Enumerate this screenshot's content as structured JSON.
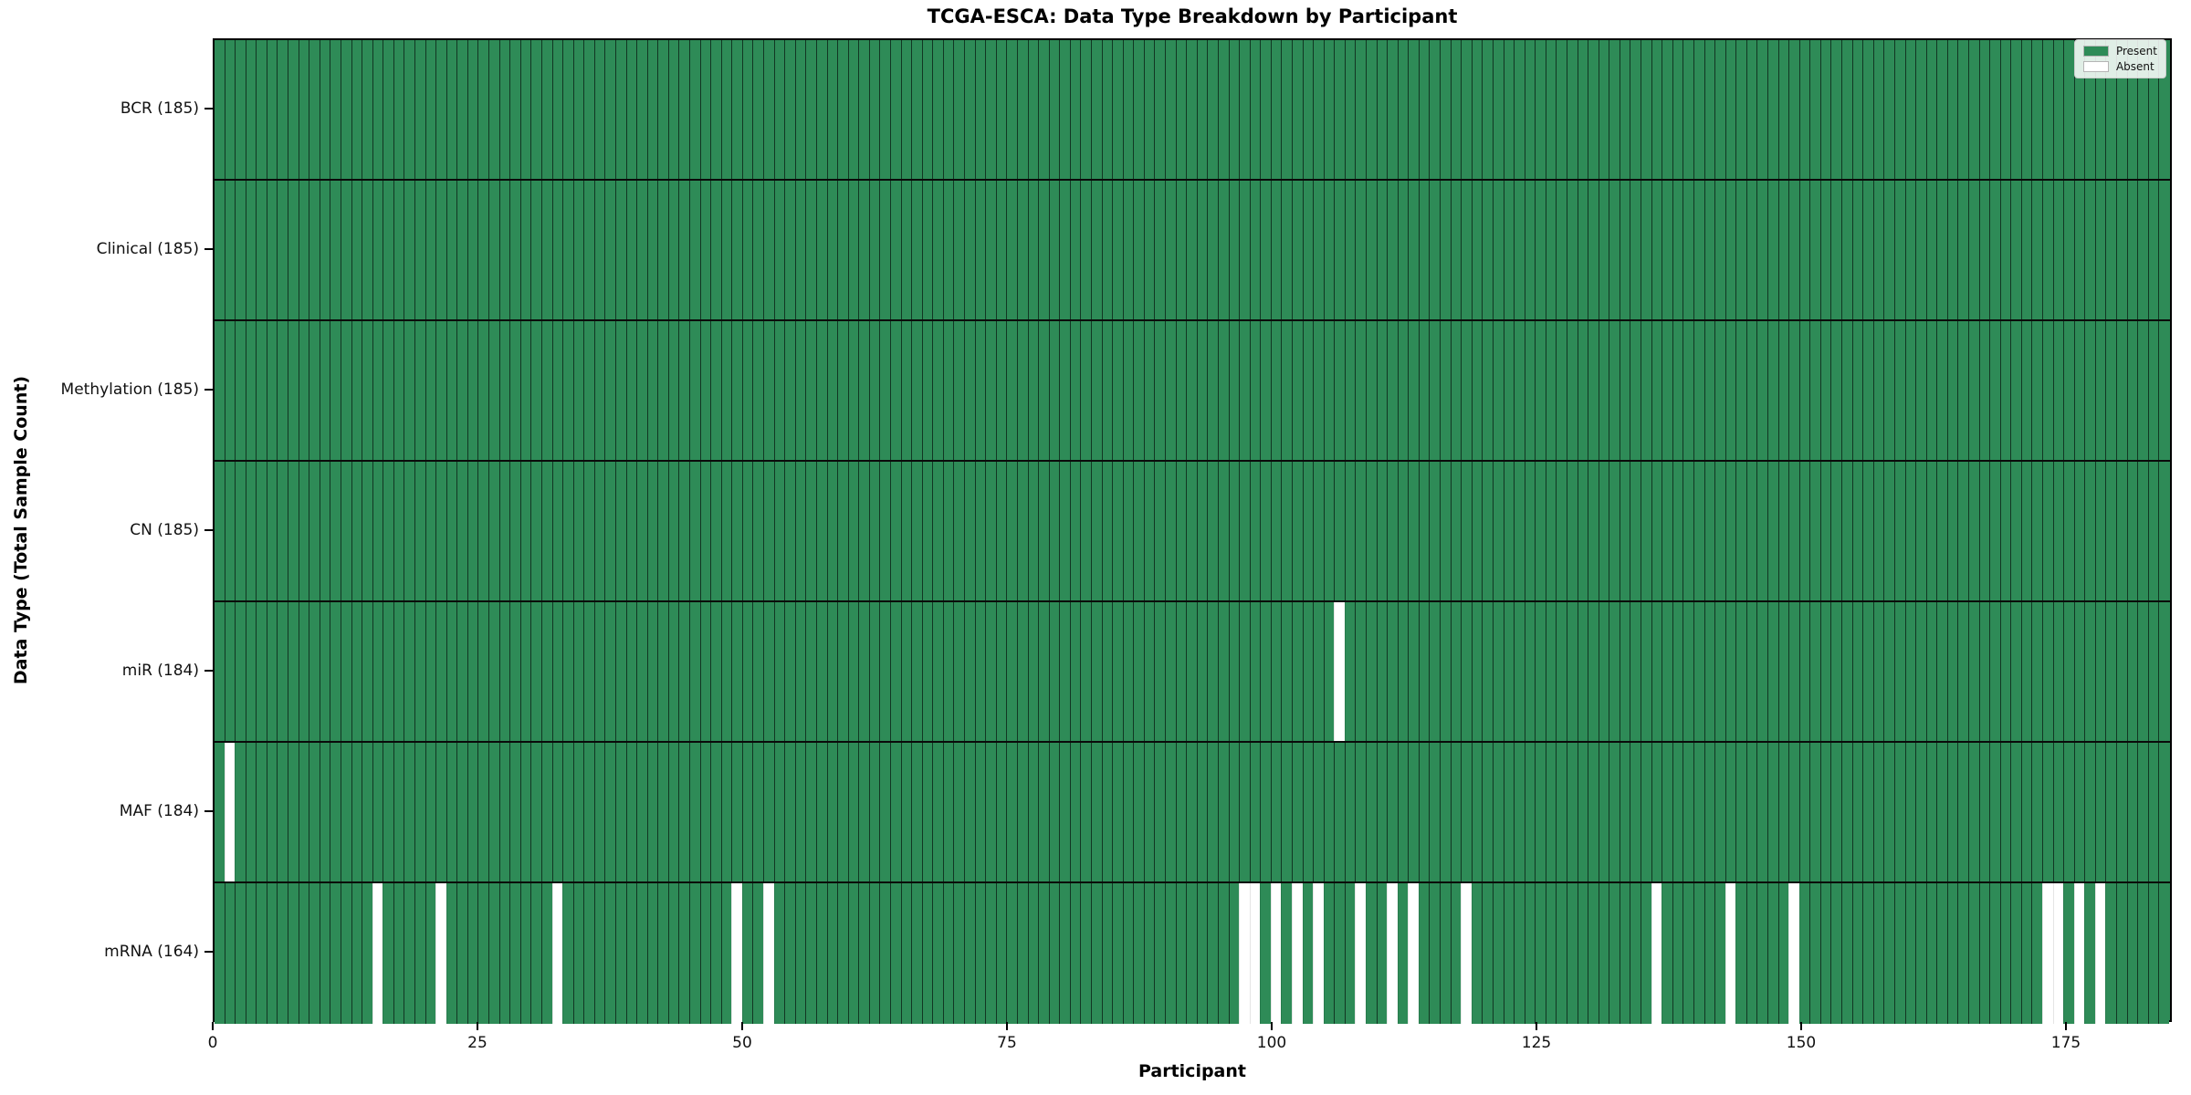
{
  "figure": {
    "title": "TCGA-ESCA: Data Type Breakdown by Participant",
    "xlabel": "Participant",
    "ylabel": "Data Type (Total Sample Count)"
  },
  "legend": {
    "items": [
      {
        "label": "Present",
        "color": "#2e8b57"
      },
      {
        "label": "Absent",
        "color": "#ffffff"
      }
    ]
  },
  "chart_data": {
    "type": "heatmap",
    "title": "TCGA-ESCA: Data Type Breakdown by Participant",
    "xlabel": "Participant",
    "ylabel": "Data Type (Total Sample Count)",
    "x_ticks": [
      0,
      25,
      50,
      75,
      100,
      125,
      150,
      175
    ],
    "xlim": [
      0,
      185
    ],
    "n_participants": 185,
    "grid": "per-bar vertical edges and horizontal row separators",
    "legend_position": "upper right",
    "colors": {
      "present": "#2e8b57",
      "absent": "#ffffff"
    },
    "rows": [
      {
        "label": "BCR (185)",
        "data_type": "BCR",
        "present_count": 185,
        "absent_participants": []
      },
      {
        "label": "Clinical (185)",
        "data_type": "Clinical",
        "present_count": 185,
        "absent_participants": []
      },
      {
        "label": "Methylation (185)",
        "data_type": "Methylation",
        "present_count": 185,
        "absent_participants": []
      },
      {
        "label": "CN (185)",
        "data_type": "CN",
        "present_count": 185,
        "absent_participants": []
      },
      {
        "label": "miR (184)",
        "data_type": "miR",
        "present_count": 184,
        "absent_participants": [
          107
        ]
      },
      {
        "label": "MAF (184)",
        "data_type": "MAF",
        "present_count": 184,
        "absent_participants": [
          2
        ]
      },
      {
        "label": "mRNA (164)",
        "data_type": "mRNA",
        "present_count": 164,
        "absent_participants": [
          16,
          22,
          33,
          50,
          53,
          98,
          99,
          101,
          103,
          105,
          109,
          112,
          114,
          119,
          137,
          144,
          150,
          174,
          175,
          177,
          179
        ]
      }
    ]
  }
}
